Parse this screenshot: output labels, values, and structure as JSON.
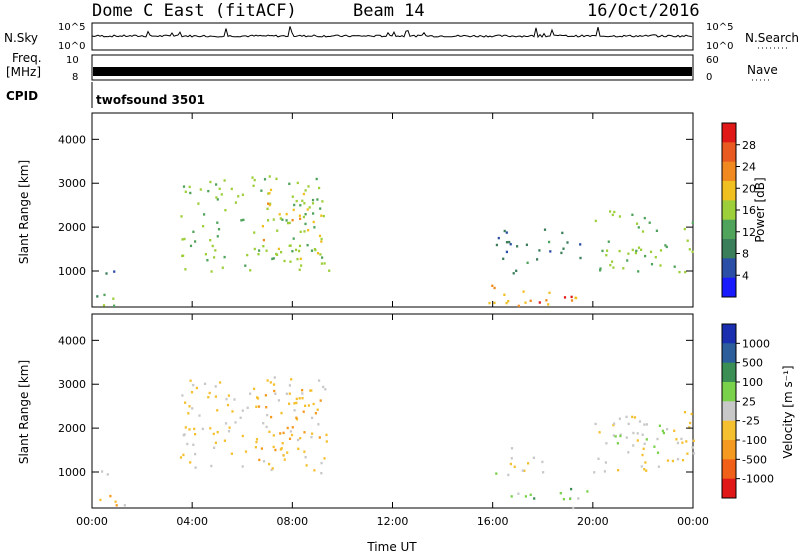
{
  "header": {
    "station": "Dome C East (fitACF)",
    "beam": "Beam 14",
    "date": "16/Oct/2016"
  },
  "top_panels": {
    "nsky_label": "N.Sky",
    "nsky_ticks": [
      "10^5",
      "10^0"
    ],
    "nsearch_label": "N.Search",
    "nsearch_ticks": [
      "10^5",
      "10^0"
    ],
    "freq_label_1": "Freq.",
    "freq_label_2": "[MHz]",
    "freq_ticks": [
      "10",
      "8"
    ],
    "nave_label": "Nave",
    "nave_ticks": [
      "60",
      "0"
    ],
    "cpid_label": "CPID",
    "cpid_text": "twofsound 3501"
  },
  "colors": {
    "power_scale": [
      "#1a1aff",
      "#2b4ea6",
      "#3b7f5a",
      "#4fa35a",
      "#9dcf3a",
      "#f0c020",
      "#f08a20",
      "#e85a20",
      "#e01818"
    ],
    "velocity_scale": [
      "#e01818",
      "#f06018",
      "#f59a20",
      "#f5c030",
      "#c8c8c8",
      "#7ad14a",
      "#3b8f55",
      "#2b5e9a",
      "#1a2fb0"
    ]
  },
  "chart_data": [
    {
      "type": "heatmap",
      "name": "power",
      "ylabel": "Slant Range [km]",
      "xlabel": "",
      "x_ticks": [
        "00:00",
        "04:00",
        "08:00",
        "12:00",
        "16:00",
        "20:00",
        "00:00"
      ],
      "y_ticks": [
        "1000",
        "2000",
        "3000",
        "4000"
      ],
      "ylim": [
        180,
        4600
      ],
      "colorbar_label": "Power [dB]",
      "colorbar_ticks": [
        "4",
        "8",
        "12",
        "16",
        "20",
        "24",
        "28"
      ],
      "clim": [
        0,
        30
      ],
      "regions": [
        {
          "t0": 0.3,
          "t1": 2.3,
          "r0": 950,
          "r1": 1060,
          "v": 8
        },
        {
          "t0": 0.0,
          "t1": 2.0,
          "r0": 200,
          "r1": 500,
          "v": 12
        },
        {
          "t0": 3.5,
          "t1": 9.5,
          "r0": 1000,
          "r1": 3200,
          "v": 14
        },
        {
          "t0": 6.5,
          "t1": 9.2,
          "r0": 1300,
          "r1": 2900,
          "v": 18
        },
        {
          "t0": 15.5,
          "t1": 17.5,
          "r0": 950,
          "r1": 1050,
          "v": 10
        },
        {
          "t0": 15.8,
          "t1": 19.8,
          "r0": 200,
          "r1": 700,
          "v": 20
        },
        {
          "t0": 17.8,
          "t1": 19.2,
          "r0": 180,
          "r1": 450,
          "v": 28
        },
        {
          "t0": 20.0,
          "t1": 24.0,
          "r0": 1000,
          "r1": 2400,
          "v": 14
        },
        {
          "t0": 16.0,
          "t1": 19.5,
          "r0": 1200,
          "r1": 2000,
          "v": 8
        }
      ]
    },
    {
      "type": "heatmap",
      "name": "velocity",
      "ylabel": "Slant Range [km]",
      "xlabel": "Time UT",
      "x_ticks": [
        "00:00",
        "04:00",
        "08:00",
        "12:00",
        "16:00",
        "20:00",
        "00:00"
      ],
      "y_ticks": [
        "1000",
        "2000",
        "3000",
        "4000"
      ],
      "ylim": [
        180,
        4600
      ],
      "colorbar_label": "Velocity [m s⁻¹]",
      "colorbar_ticks": [
        "-1000",
        "-500",
        "-100",
        "-25",
        "25",
        "100",
        "500",
        "1000"
      ],
      "clim": [
        -1000,
        1000
      ],
      "regions": [
        {
          "t0": 0.3,
          "t1": 2.3,
          "r0": 950,
          "r1": 1060,
          "v": 0
        },
        {
          "t0": 0.0,
          "t1": 2.0,
          "r0": 200,
          "r1": 500,
          "v": -200
        },
        {
          "t0": 3.5,
          "t1": 9.5,
          "r0": 1000,
          "r1": 3200,
          "v": -120
        },
        {
          "t0": 6.5,
          "t1": 9.2,
          "r0": 1300,
          "r1": 2900,
          "v": -300
        },
        {
          "t0": 15.5,
          "t1": 17.5,
          "r0": 950,
          "r1": 1050,
          "v": 0
        },
        {
          "t0": 16.5,
          "t1": 19.8,
          "r0": 180,
          "r1": 650,
          "v": 200
        },
        {
          "t0": 16.0,
          "t1": 18.0,
          "r0": 1000,
          "r1": 1600,
          "v": -150
        },
        {
          "t0": 20.0,
          "t1": 24.0,
          "r0": 1000,
          "r1": 2400,
          "v": -120
        },
        {
          "t0": 20.5,
          "t1": 23.0,
          "r0": 1400,
          "r1": 2200,
          "v": 150
        }
      ]
    }
  ]
}
